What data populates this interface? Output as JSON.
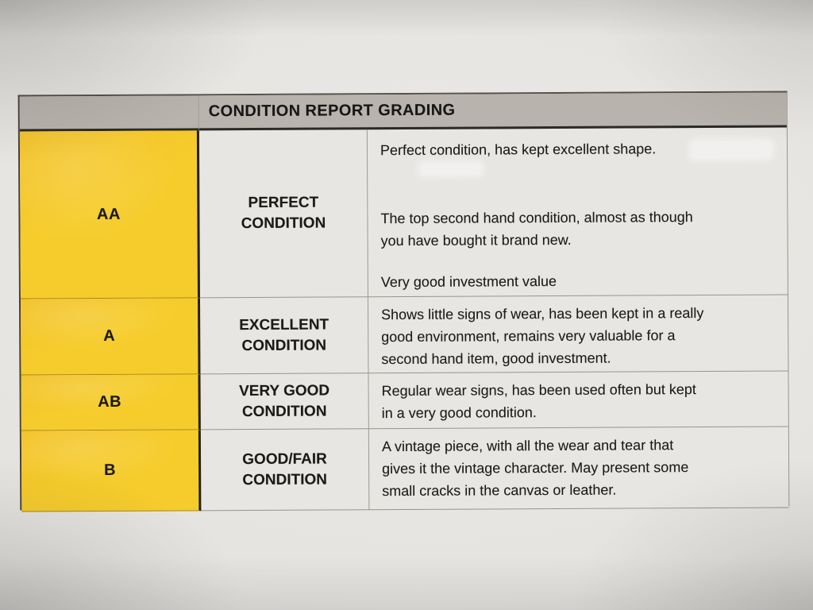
{
  "table": {
    "title": "CONDITION REPORT GRADING",
    "rows": [
      {
        "grade": "AA",
        "label": "PERFECT\nCONDITION",
        "paragraphs": [
          "Perfect condition, has kept excellent shape.",
          "The top second hand condition, almost as though\nyou have bought it brand new.",
          "Very good investment value"
        ]
      },
      {
        "grade": "A",
        "label": "EXCELLENT\nCONDITION",
        "paragraphs": [
          "Shows little signs of wear, has been kept in a really\ngood environment, remains very valuable for a\nsecond hand item, good investment."
        ]
      },
      {
        "grade": "AB",
        "label": "VERY GOOD\nCONDITION",
        "paragraphs": [
          "Regular wear signs, has been used often but kept\nin a very good condition."
        ]
      },
      {
        "grade": "B",
        "label": "GOOD/FAIR\nCONDITION",
        "paragraphs": [
          "A vintage piece, with all the wear and tear that\ngives it the vintage character. May present some\nsmall cracks in the canvas or leather."
        ]
      }
    ],
    "colors": {
      "grade_column": "#f6cc2d",
      "header_bg": "#b8b4ad",
      "paper": "#e6e4e1",
      "text": "#1b1a18"
    }
  }
}
